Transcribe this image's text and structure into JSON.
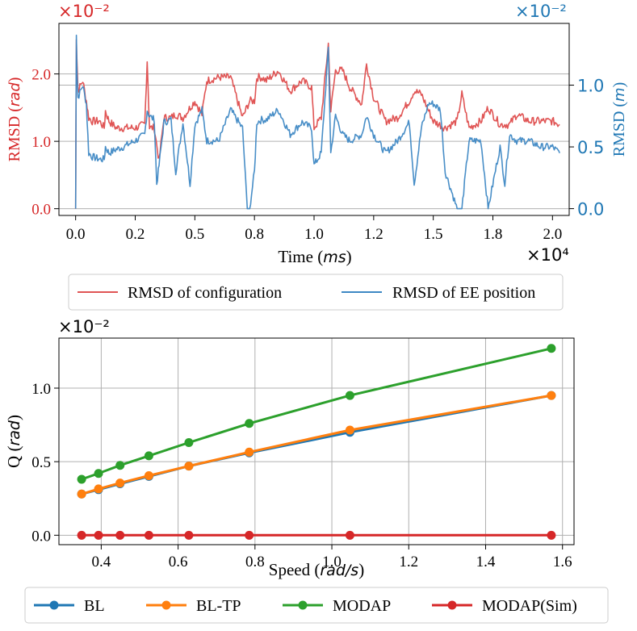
{
  "chart_data": [
    {
      "type": "line",
      "title": "",
      "xlabel": {
        "prefix": "Time (",
        "unit": "ms",
        "suffix": ")"
      },
      "x_multiplier": "×10⁴",
      "xlim": [
        -0.07,
        2.07
      ],
      "xticks": [
        "0.0",
        "0.2",
        "0.5",
        "0.8",
        "1.0",
        "1.2",
        "1.5",
        "1.8",
        "2.0"
      ],
      "xtick_values": [
        0.0,
        0.25,
        0.5,
        0.75,
        1.0,
        1.25,
        1.5,
        1.75,
        2.0
      ],
      "y_left": {
        "label_prefix": "RMSD (",
        "label_unit": "rad",
        "label_suffix": ")",
        "multiplier": "×10⁻²",
        "color": "#d62728",
        "lim": [
          -0.1,
          2.75
        ],
        "ticks": [
          "0.0",
          "1.0",
          "2.0"
        ],
        "tick_values": [
          0.0,
          1.0,
          2.0
        ]
      },
      "y_right": {
        "label_prefix": "RMSD (",
        "label_unit": "m",
        "label_suffix": ")",
        "multiplier": "×10⁻²",
        "color": "#1f77b4",
        "lim": [
          -0.055,
          1.5
        ],
        "ticks": [
          "0.0",
          "0.5",
          "1.0"
        ],
        "tick_values": [
          0.0,
          0.5,
          1.0
        ]
      },
      "series": [
        {
          "name": "RMSD of configuration",
          "axis": "left",
          "color": "#e05555",
          "x": [
            0.0,
            0.003,
            0.006,
            0.01,
            0.03,
            0.045,
            0.055,
            0.07,
            0.1,
            0.12,
            0.125,
            0.14,
            0.17,
            0.2,
            0.25,
            0.29,
            0.3,
            0.31,
            0.33,
            0.35,
            0.37,
            0.4,
            0.42,
            0.45,
            0.5,
            0.53,
            0.55,
            0.6,
            0.65,
            0.7,
            0.73,
            0.75,
            0.76,
            0.78,
            0.8,
            0.85,
            0.9,
            0.95,
            0.99,
            1.0,
            1.03,
            1.06,
            1.07,
            1.09,
            1.12,
            1.15,
            1.2,
            1.22,
            1.25,
            1.3,
            1.35,
            1.4,
            1.42,
            1.45,
            1.5,
            1.55,
            1.6,
            1.62,
            1.65,
            1.7,
            1.73,
            1.78,
            1.82,
            1.85,
            1.9,
            1.95,
            2.0,
            2.03
          ],
          "y": [
            0.0,
            2.5,
            2.2,
            1.75,
            1.9,
            1.6,
            1.35,
            1.3,
            1.3,
            1.2,
            1.45,
            1.3,
            1.2,
            1.2,
            1.2,
            1.25,
            2.2,
            1.2,
            1.2,
            0.7,
            1.35,
            1.35,
            1.4,
            1.35,
            1.6,
            1.4,
            1.9,
            1.95,
            1.95,
            1.35,
            1.6,
            1.6,
            1.95,
            1.95,
            1.9,
            2.05,
            1.75,
            1.9,
            1.8,
            1.2,
            1.35,
            2.45,
            1.45,
            2.05,
            2.05,
            1.8,
            1.55,
            2.15,
            1.65,
            1.3,
            1.35,
            1.6,
            1.75,
            1.7,
            1.3,
            1.2,
            1.3,
            1.7,
            1.2,
            1.3,
            1.5,
            1.25,
            1.25,
            1.4,
            1.3,
            1.3,
            1.3,
            1.25
          ]
        },
        {
          "name": "RMSD of EE position",
          "axis": "right",
          "color": "#3e88c4",
          "x": [
            0.0,
            0.003,
            0.006,
            0.01,
            0.03,
            0.045,
            0.055,
            0.07,
            0.1,
            0.12,
            0.125,
            0.14,
            0.17,
            0.2,
            0.22,
            0.25,
            0.29,
            0.3,
            0.31,
            0.33,
            0.34,
            0.35,
            0.37,
            0.4,
            0.42,
            0.45,
            0.48,
            0.5,
            0.53,
            0.55,
            0.6,
            0.65,
            0.7,
            0.72,
            0.73,
            0.75,
            0.76,
            0.78,
            0.8,
            0.85,
            0.9,
            0.95,
            0.99,
            1.0,
            1.03,
            1.06,
            1.07,
            1.09,
            1.12,
            1.15,
            1.2,
            1.22,
            1.25,
            1.3,
            1.35,
            1.4,
            1.42,
            1.45,
            1.48,
            1.5,
            1.53,
            1.55,
            1.6,
            1.62,
            1.65,
            1.7,
            1.73,
            1.78,
            1.8,
            1.82,
            1.85,
            1.9,
            1.95,
            2.0,
            2.03
          ],
          "y": [
            0.0,
            1.4,
            1.1,
            0.9,
            1.0,
            0.85,
            0.45,
            0.42,
            0.4,
            0.4,
            0.5,
            0.45,
            0.48,
            0.5,
            0.52,
            0.55,
            0.6,
            0.8,
            0.75,
            0.72,
            0.2,
            0.35,
            0.7,
            0.72,
            0.3,
            0.7,
            0.2,
            0.68,
            0.8,
            0.55,
            0.55,
            0.8,
            0.65,
            0.0,
            0.0,
            0.3,
            0.7,
            0.72,
            0.72,
            0.8,
            0.6,
            0.7,
            0.65,
            0.35,
            0.45,
            1.3,
            0.45,
            0.75,
            0.6,
            0.55,
            0.6,
            0.75,
            0.6,
            0.45,
            0.55,
            0.7,
            0.2,
            0.65,
            0.85,
            0.85,
            0.8,
            0.3,
            0.0,
            0.0,
            0.55,
            0.55,
            0.0,
            0.5,
            0.2,
            0.6,
            0.55,
            0.55,
            0.5,
            0.5,
            0.45
          ]
        }
      ],
      "legend": {
        "placement": "below"
      }
    },
    {
      "type": "line",
      "title": "",
      "xlabel": {
        "prefix": "Speed (",
        "unit": "rad/s",
        "suffix": ")"
      },
      "ylabel": {
        "prefix": "Q (",
        "unit": "rad",
        "suffix": ")"
      },
      "y_multiplier": "×10⁻²",
      "xlim": [
        0.29,
        1.63
      ],
      "ylim": [
        -0.064,
        1.34
      ],
      "xticks": [
        "0.4",
        "0.6",
        "0.8",
        "1.0",
        "1.2",
        "1.4",
        "1.6"
      ],
      "xtick_values": [
        0.4,
        0.6,
        0.8,
        1.0,
        1.2,
        1.4,
        1.6
      ],
      "yticks": [
        "0.0",
        "0.5",
        "1.0"
      ],
      "ytick_values": [
        0.0,
        0.5,
        1.0
      ],
      "grid": true,
      "x": [
        0.349,
        0.393,
        0.449,
        0.524,
        0.628,
        0.785,
        1.047,
        1.571
      ],
      "series": [
        {
          "name": "BL",
          "color": "#1f77b4",
          "values": [
            0.28,
            0.31,
            0.35,
            0.4,
            0.47,
            0.56,
            0.7,
            0.95
          ]
        },
        {
          "name": "BL-TP",
          "color": "#ff7f0e",
          "values": [
            0.28,
            0.315,
            0.355,
            0.405,
            0.47,
            0.565,
            0.715,
            0.95
          ]
        },
        {
          "name": "MODAP",
          "color": "#2ca02c",
          "values": [
            0.38,
            0.42,
            0.475,
            0.54,
            0.63,
            0.76,
            0.95,
            1.27
          ]
        },
        {
          "name": "MODAP(Sim)",
          "color": "#d62728",
          "values": [
            0.0,
            0.0,
            0.0,
            0.0,
            0.0,
            0.0,
            0.0,
            0.0
          ]
        }
      ],
      "legend": {
        "placement": "below"
      }
    }
  ]
}
